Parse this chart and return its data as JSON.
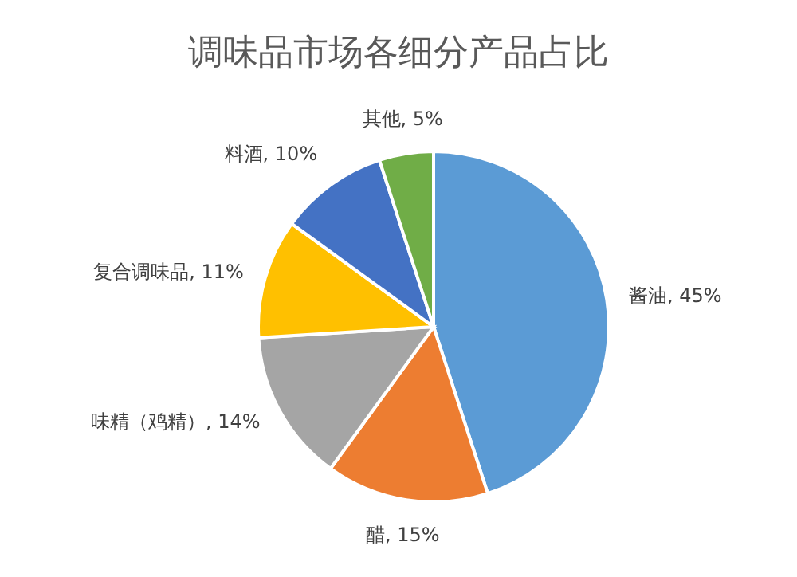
{
  "chart_data": {
    "type": "pie",
    "title": "调味品市场各细分产品占比",
    "categories": [
      "酱油",
      "醋",
      "味精（鸡精）",
      "复合调味品",
      "料酒",
      "其他"
    ],
    "values": [
      45,
      15,
      14,
      11,
      10,
      5
    ],
    "value_labels": [
      "45%",
      "15%",
      "14%",
      "11%",
      "10%",
      "5%"
    ],
    "colors": [
      "#5b9bd5",
      "#ed7d31",
      "#a5a5a5",
      "#ffc000",
      "#4472c4",
      "#70ad47"
    ]
  }
}
